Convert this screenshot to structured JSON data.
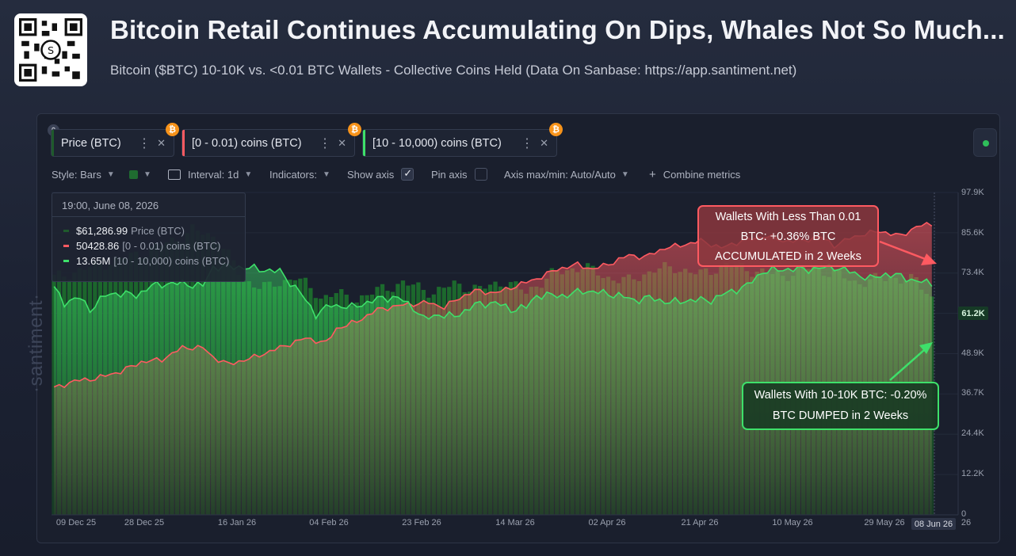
{
  "header": {
    "title": "Bitcoin Retail Continues Accumulating On Dips, Whales Not So Much...",
    "subtitle": "Bitcoin ($BTC) 10-10K vs. <0.01 BTC Wallets - Collective Coins Held (Data On Sanbase: https://app.santiment.net)"
  },
  "metric_tabs": [
    {
      "label": "Price (BTC)",
      "color": "#1f5a2c"
    },
    {
      "label": "[0 - 0.01) coins (BTC)",
      "color": "#ff5a61"
    },
    {
      "label": "[10 - 10,000) coins (BTC)",
      "color": "#3ee06a"
    }
  ],
  "toolbar": {
    "style": "Style: Bars",
    "interval": "Interval: 1d",
    "indicators": "Indicators:",
    "show_axis": "Show axis",
    "pin_axis": "Pin axis",
    "axis_maxmin": "Axis max/min: Auto/Auto",
    "combine": "Combine metrics"
  },
  "tooltip": {
    "date": "19:00, June 08, 2026",
    "rows": [
      {
        "value": "$61,286.99",
        "name": "Price (BTC)",
        "color": "#1f5a2c"
      },
      {
        "value": "50428.86",
        "name": "[0 - 0.01) coins (BTC)",
        "color": "#ff5a61"
      },
      {
        "value": "13.65M",
        "name": "[10 - 10,000) coins (BTC)",
        "color": "#3ee06a"
      }
    ]
  },
  "watermark": "·santiment·",
  "annotations": {
    "red": [
      "Wallets With Less Than 0.01",
      "BTC: +0.36% BTC",
      "ACCUMULATED in 2 Weeks"
    ],
    "green": [
      "Wallets With 10-10K BTC: -0.20%",
      "BTC DUMPED in 2 Weeks"
    ]
  },
  "chart_data": {
    "type": "bar",
    "y_ticks": [
      "97.9K",
      "85.6K",
      "73.4K",
      "61.2K",
      "48.9K",
      "36.7K",
      "24.4K",
      "12.2K",
      "0"
    ],
    "y_current": "61.2K",
    "x_ticks": [
      "09 Dec 25",
      "28 Dec 25",
      "16 Jan 26",
      "04 Feb 26",
      "23 Feb 26",
      "14 Mar 26",
      "02 Apr 26",
      "21 Apr 26",
      "10 May 26",
      "29 May 26",
      "08 Jun 26"
    ],
    "x_ticks_edge": "26",
    "x_current": "08 Jun 26",
    "price_ylim": [
      0,
      97900
    ],
    "price_knots": [
      [
        0,
        72000
      ],
      [
        8,
        75500
      ],
      [
        18,
        80000
      ],
      [
        25,
        84500
      ],
      [
        27,
        86500
      ],
      [
        32,
        84000
      ],
      [
        37,
        71000
      ],
      [
        42,
        69000
      ],
      [
        47,
        72500
      ],
      [
        52,
        66000
      ],
      [
        55,
        67500
      ],
      [
        58,
        65000
      ],
      [
        63,
        68000
      ],
      [
        68,
        70500
      ],
      [
        74,
        67500
      ],
      [
        78,
        70000
      ],
      [
        83,
        68500
      ],
      [
        88,
        71000
      ],
      [
        92,
        67500
      ],
      [
        97,
        73000
      ],
      [
        103,
        75500
      ],
      [
        108,
        72000
      ],
      [
        112,
        71000
      ],
      [
        117,
        74500
      ],
      [
        121,
        75000
      ],
      [
        126,
        73000
      ],
      [
        131,
        76000
      ],
      [
        137,
        74000
      ],
      [
        142,
        72500
      ],
      [
        147,
        75000
      ],
      [
        152,
        73500
      ],
      [
        156,
        70500
      ],
      [
        160,
        71500
      ],
      [
        164,
        72000
      ],
      [
        168,
        71000
      ],
      [
        171,
        66000
      ]
    ],
    "retail_knots": [
      [
        0,
        20
      ],
      [
        4,
        23
      ],
      [
        8,
        24
      ],
      [
        13,
        27
      ],
      [
        17,
        31
      ],
      [
        21,
        32
      ],
      [
        25,
        37
      ],
      [
        29,
        37
      ],
      [
        31,
        33
      ],
      [
        34,
        30
      ],
      [
        39,
        33
      ],
      [
        44,
        37
      ],
      [
        49,
        41
      ],
      [
        53,
        39
      ],
      [
        55,
        45
      ],
      [
        59,
        48
      ],
      [
        63,
        53
      ],
      [
        68,
        55
      ],
      [
        73,
        56
      ],
      [
        76,
        54
      ],
      [
        79,
        58
      ],
      [
        82,
        61
      ],
      [
        86,
        60
      ],
      [
        90,
        63
      ],
      [
        94,
        66
      ],
      [
        98,
        70
      ],
      [
        102,
        72
      ],
      [
        105,
        70
      ],
      [
        109,
        73
      ],
      [
        112,
        76
      ],
      [
        115,
        75
      ],
      [
        119,
        79
      ],
      [
        122,
        80
      ],
      [
        126,
        82
      ],
      [
        130,
        79
      ],
      [
        134,
        82
      ],
      [
        139,
        84
      ],
      [
        142,
        82
      ],
      [
        146,
        82
      ],
      [
        149,
        84
      ],
      [
        152,
        80
      ],
      [
        155,
        83
      ],
      [
        158,
        85
      ],
      [
        161,
        86
      ],
      [
        165,
        84
      ],
      [
        168,
        88
      ],
      [
        171,
        89
      ]
    ],
    "whale_knots": [
      [
        0,
        62
      ],
      [
        2,
        56
      ],
      [
        5,
        58
      ],
      [
        7,
        53
      ],
      [
        10,
        59
      ],
      [
        12,
        60
      ],
      [
        16,
        59
      ],
      [
        19,
        63
      ],
      [
        22,
        64
      ],
      [
        25,
        64
      ],
      [
        29,
        63
      ],
      [
        31,
        71
      ],
      [
        36,
        71
      ],
      [
        40,
        70
      ],
      [
        44,
        69
      ],
      [
        48,
        60
      ],
      [
        51,
        51
      ],
      [
        54,
        55
      ],
      [
        58,
        54
      ],
      [
        61,
        56
      ],
      [
        64,
        58
      ],
      [
        67,
        58
      ],
      [
        70,
        54
      ],
      [
        72,
        49
      ],
      [
        75,
        51
      ],
      [
        78,
        50
      ],
      [
        82,
        55
      ],
      [
        86,
        56
      ],
      [
        89,
        53
      ],
      [
        92,
        54
      ],
      [
        94,
        59
      ],
      [
        97,
        59
      ],
      [
        100,
        59
      ],
      [
        103,
        61
      ],
      [
        107,
        60
      ],
      [
        110,
        59
      ],
      [
        113,
        57
      ],
      [
        116,
        58
      ],
      [
        120,
        56
      ],
      [
        124,
        57
      ],
      [
        128,
        57
      ],
      [
        131,
        60
      ],
      [
        135,
        63
      ],
      [
        138,
        69
      ],
      [
        142,
        70
      ],
      [
        147,
        70
      ],
      [
        152,
        71
      ],
      [
        155,
        69
      ],
      [
        159,
        66
      ],
      [
        162,
        68
      ],
      [
        165,
        67
      ],
      [
        168,
        65
      ],
      [
        171,
        64
      ]
    ],
    "series": [
      {
        "name": "Price (BTC)",
        "color": "#1e6b30"
      },
      {
        "name": "[0 - 0.01) coins (BTC)",
        "color": "#ff5a61"
      },
      {
        "name": "[10 - 10,000) coins (BTC)",
        "color": "#3ee06a"
      }
    ],
    "annotation_colors": {
      "red_arrow": "#ff5a61",
      "green_arrow": "#3ee06a"
    }
  }
}
